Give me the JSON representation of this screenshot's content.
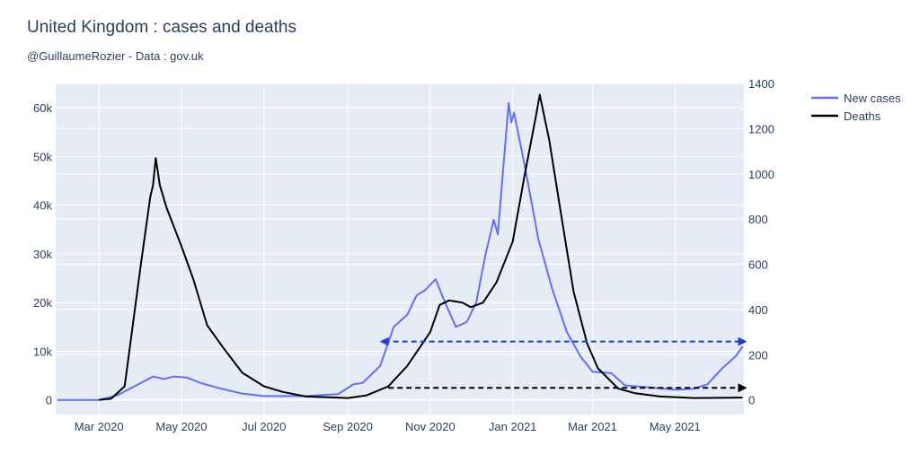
{
  "chart_data": {
    "type": "line",
    "title": "United Kingdom : cases and deaths",
    "subtitle": "@GuillaumeRozier - Data : gov.uk",
    "legend_position": "top-right",
    "grid": true,
    "x_ticks": [
      [
        "2020-03-01",
        "Mar 2020"
      ],
      [
        "2020-05-01",
        "May 2020"
      ],
      [
        "2020-07-01",
        "Jul 2020"
      ],
      [
        "2020-09-01",
        "Sep 2020"
      ],
      [
        "2020-11-01",
        "Nov 2020"
      ],
      [
        "2021-01-01",
        "Jan 2021"
      ],
      [
        "2021-03-01",
        "Mar 2021"
      ],
      [
        "2021-05-01",
        "May 2021"
      ]
    ],
    "xlim": [
      "2020-01-29",
      "2021-06-21"
    ],
    "y_left": {
      "ticks": [
        0,
        10000,
        20000,
        30000,
        40000,
        50000,
        60000
      ],
      "labels": [
        "0",
        "10k",
        "20k",
        "30k",
        "40k",
        "50k",
        "60k"
      ],
      "range": [
        -3000,
        65000
      ]
    },
    "y_right": {
      "ticks": [
        0,
        200,
        400,
        600,
        800,
        1000,
        1200,
        1400
      ],
      "labels": [
        "0",
        "200",
        "400",
        "600",
        "800",
        "1000",
        "1200",
        "1400"
      ],
      "range": [
        -65,
        1400
      ]
    },
    "series": [
      {
        "name": "New cases",
        "axis": "left",
        "color": "#636efa",
        "points": [
          [
            "2020-01-30",
            0
          ],
          [
            "2020-03-01",
            0
          ],
          [
            "2020-03-15",
            1000
          ],
          [
            "2020-04-01",
            3500
          ],
          [
            "2020-04-10",
            4800
          ],
          [
            "2020-04-18",
            4300
          ],
          [
            "2020-04-25",
            4800
          ],
          [
            "2020-05-05",
            4600
          ],
          [
            "2020-05-15",
            3500
          ],
          [
            "2020-06-01",
            2200
          ],
          [
            "2020-06-15",
            1300
          ],
          [
            "2020-07-01",
            800
          ],
          [
            "2020-08-01",
            800
          ],
          [
            "2020-08-25",
            1200
          ],
          [
            "2020-09-05",
            3200
          ],
          [
            "2020-09-12",
            3500
          ],
          [
            "2020-09-25",
            7000
          ],
          [
            "2020-10-05",
            15000
          ],
          [
            "2020-10-15",
            17500
          ],
          [
            "2020-10-22",
            21500
          ],
          [
            "2020-10-28",
            22500
          ],
          [
            "2020-11-05",
            24800
          ],
          [
            "2020-11-12",
            20000
          ],
          [
            "2020-11-20",
            15000
          ],
          [
            "2020-11-28",
            16000
          ],
          [
            "2020-12-05",
            20000
          ],
          [
            "2020-12-12",
            30000
          ],
          [
            "2020-12-18",
            37000
          ],
          [
            "2020-12-21",
            34000
          ],
          [
            "2020-12-29",
            61000
          ],
          [
            "2020-12-31",
            57000
          ],
          [
            "2021-01-02",
            59000
          ],
          [
            "2021-01-10",
            48000
          ],
          [
            "2021-01-20",
            33000
          ],
          [
            "2021-01-30",
            23000
          ],
          [
            "2021-02-10",
            14000
          ],
          [
            "2021-02-20",
            9000
          ],
          [
            "2021-03-01",
            5800
          ],
          [
            "2021-03-15",
            5500
          ],
          [
            "2021-03-25",
            3000
          ],
          [
            "2021-04-15",
            2500
          ],
          [
            "2021-05-01",
            2100
          ],
          [
            "2021-05-15",
            2300
          ],
          [
            "2021-05-25",
            3200
          ],
          [
            "2021-06-05",
            6500
          ],
          [
            "2021-06-15",
            9000
          ],
          [
            "2021-06-20",
            11000
          ]
        ]
      },
      {
        "name": "Deaths",
        "axis": "right",
        "color": "#000000",
        "points": [
          [
            "2020-03-01",
            0
          ],
          [
            "2020-03-10",
            5
          ],
          [
            "2020-03-20",
            60
          ],
          [
            "2020-04-01",
            600
          ],
          [
            "2020-04-08",
            900
          ],
          [
            "2020-04-10",
            950
          ],
          [
            "2020-04-12",
            1070
          ],
          [
            "2020-04-15",
            950
          ],
          [
            "2020-04-20",
            850
          ],
          [
            "2020-05-01",
            680
          ],
          [
            "2020-05-10",
            530
          ],
          [
            "2020-05-20",
            330
          ],
          [
            "2020-06-01",
            230
          ],
          [
            "2020-06-15",
            120
          ],
          [
            "2020-07-01",
            60
          ],
          [
            "2020-07-15",
            35
          ],
          [
            "2020-08-01",
            15
          ],
          [
            "2020-09-01",
            8
          ],
          [
            "2020-09-15",
            20
          ],
          [
            "2020-10-01",
            60
          ],
          [
            "2020-10-15",
            150
          ],
          [
            "2020-11-01",
            300
          ],
          [
            "2020-11-08",
            420
          ],
          [
            "2020-11-15",
            440
          ],
          [
            "2020-11-25",
            430
          ],
          [
            "2020-12-01",
            410
          ],
          [
            "2020-12-10",
            430
          ],
          [
            "2020-12-20",
            520
          ],
          [
            "2021-01-01",
            700
          ],
          [
            "2021-01-10",
            1000
          ],
          [
            "2021-01-18",
            1250
          ],
          [
            "2021-01-21",
            1350
          ],
          [
            "2021-01-28",
            1150
          ],
          [
            "2021-02-05",
            850
          ],
          [
            "2021-02-15",
            480
          ],
          [
            "2021-02-25",
            250
          ],
          [
            "2021-03-05",
            140
          ],
          [
            "2021-03-20",
            50
          ],
          [
            "2021-04-01",
            30
          ],
          [
            "2021-04-20",
            15
          ],
          [
            "2021-05-15",
            8
          ],
          [
            "2021-06-20",
            10
          ]
        ]
      }
    ],
    "annotations": [
      {
        "axis": "left",
        "y": 12000,
        "from": "2020-09-28",
        "to": "2021-06-20",
        "color": "#1f3fd6",
        "style": "dashed",
        "arrows": "both"
      },
      {
        "axis": "right",
        "y": 53,
        "from": "2020-10-01",
        "to": "2021-06-20",
        "color": "#000000",
        "style": "dashed",
        "arrows": "end"
      }
    ]
  }
}
